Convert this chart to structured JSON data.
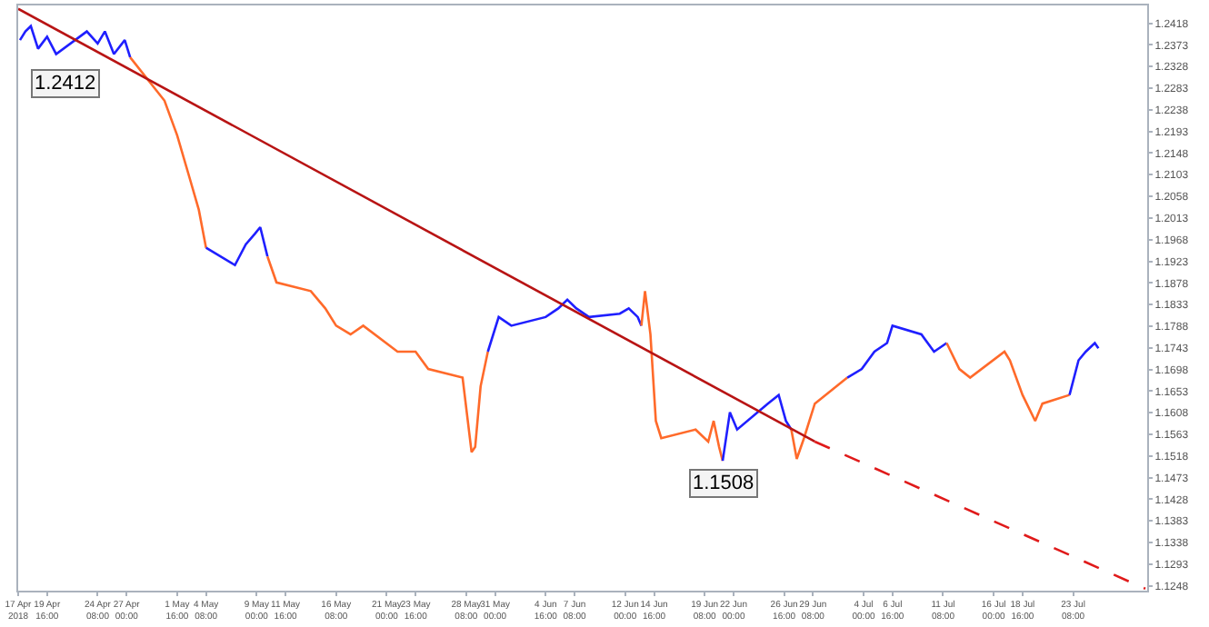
{
  "chart_data": {
    "type": "line",
    "xlim": [
      "2018-04-17T00:00",
      "2018-07-30T04:00"
    ],
    "ylim": [
      1.1238,
      1.2455
    ],
    "xticks": [
      {
        "value": "2018-04-17T00:00",
        "label": "17 Apr 2018"
      },
      {
        "value": "2018-04-19T16:00",
        "label": "19 Apr 16:00"
      },
      {
        "value": "2018-04-24T08:00",
        "label": "24 Apr 08:00"
      },
      {
        "value": "2018-04-27T00:00",
        "label": "27 Apr 00:00"
      },
      {
        "value": "2018-05-01T16:00",
        "label": "1 May 16:00"
      },
      {
        "value": "2018-05-04T08:00",
        "label": "4 May 08:00"
      },
      {
        "value": "2018-05-09T00:00",
        "label": "9 May 00:00"
      },
      {
        "value": "2018-05-11T16:00",
        "label": "11 May 16:00"
      },
      {
        "value": "2018-05-16T08:00",
        "label": "16 May 08:00"
      },
      {
        "value": "2018-05-21T00:00",
        "label": "21 May 00:00"
      },
      {
        "value": "2018-05-23T16:00",
        "label": "23 May 16:00"
      },
      {
        "value": "2018-05-28T08:00",
        "label": "28 May 08:00"
      },
      {
        "value": "2018-05-31T00:00",
        "label": "31 May 00:00"
      },
      {
        "value": "2018-06-04T16:00",
        "label": "4 Jun 16:00"
      },
      {
        "value": "2018-06-07T08:00",
        "label": "7 Jun 08:00"
      },
      {
        "value": "2018-06-12T00:00",
        "label": "12 Jun 00:00"
      },
      {
        "value": "2018-06-14T16:00",
        "label": "14 Jun 16:00"
      },
      {
        "value": "2018-06-19T08:00",
        "label": "19 Jun 08:00"
      },
      {
        "value": "2018-06-22T00:00",
        "label": "22 Jun 00:00"
      },
      {
        "value": "2018-06-26T16:00",
        "label": "26 Jun 16:00"
      },
      {
        "value": "2018-06-29T08:00",
        "label": "29 Jun 08:00"
      },
      {
        "value": "2018-07-04T00:00",
        "label": "4 Jul 00:00"
      },
      {
        "value": "2018-07-06T16:00",
        "label": "6 Jul 16:00"
      },
      {
        "value": "2018-07-11T08:00",
        "label": "11 Jul 08:00"
      },
      {
        "value": "2018-07-16T00:00",
        "label": "16 Jul 00:00"
      },
      {
        "value": "2018-07-18T16:00",
        "label": "18 Jul 16:00"
      },
      {
        "value": "2018-07-23T08:00",
        "label": "23 Jul 08:00"
      }
    ],
    "yticks": [
      1.1248,
      1.1293,
      1.1338,
      1.1383,
      1.1428,
      1.1473,
      1.1518,
      1.1563,
      1.1608,
      1.1653,
      1.1698,
      1.1743,
      1.1788,
      1.1833,
      1.1878,
      1.1923,
      1.1968,
      1.2013,
      1.2058,
      1.2103,
      1.2148,
      1.2193,
      1.2238,
      1.2283,
      1.2328,
      1.2373,
      1.2418
    ],
    "series": [
      {
        "color": "#1f1fff",
        "x": [
          "2018-04-17T04:00",
          "2018-04-17T16:00",
          "2018-04-18T04:00",
          "2018-04-18T20:00",
          "2018-04-19T16:00",
          "2018-04-20T12:00",
          "2018-04-23T08:00",
          "2018-04-24T08:00",
          "2018-04-25T00:00",
          "2018-04-25T20:00",
          "2018-04-26T20:00",
          "2018-04-27T08:00"
        ],
        "values": [
          1.2383,
          1.2401,
          1.2412,
          1.2365,
          1.239,
          1.2354,
          1.2401,
          1.2376,
          1.2401,
          1.2354,
          1.2383,
          1.2347
        ]
      },
      {
        "color": "#ff6a2a",
        "x": [
          "2018-04-27T08:00",
          "2018-04-30T12:00",
          "2018-05-01T16:00",
          "2018-05-02T20:00",
          "2018-05-03T16:00",
          "2018-05-04T08:00"
        ],
        "values": [
          1.2347,
          1.2257,
          1.2185,
          1.2095,
          1.203,
          1.1951
        ]
      },
      {
        "color": "#1f1fff",
        "x": [
          "2018-05-04T08:00",
          "2018-05-07T00:00",
          "2018-05-08T00:00",
          "2018-05-08T20:00",
          "2018-05-09T08:00",
          "2018-05-10T00:00"
        ],
        "values": [
          1.1951,
          1.1915,
          1.1958,
          1.198,
          1.1994,
          1.1933
        ]
      },
      {
        "color": "#ff6a2a",
        "x": [
          "2018-05-10T00:00",
          "2018-05-10T20:00",
          "2018-05-14T00:00",
          "2018-05-15T08:00",
          "2018-05-16T08:00",
          "2018-05-17T16:00",
          "2018-05-18T20:00",
          "2018-05-22T00:00",
          "2018-05-23T16:00",
          "2018-05-24T20:00",
          "2018-05-28T00:00",
          "2018-05-28T20:00",
          "2018-05-29T04:00",
          "2018-05-29T16:00",
          "2018-05-30T08:00"
        ],
        "values": [
          1.1933,
          1.1879,
          1.1861,
          1.1825,
          1.1789,
          1.1771,
          1.1789,
          1.1735,
          1.1735,
          1.1699,
          1.1681,
          1.1526,
          1.1537,
          1.1663,
          1.1735
        ]
      },
      {
        "color": "#1f1fff",
        "x": [
          "2018-05-30T08:00",
          "2018-05-31T08:00",
          "2018-06-01T12:00",
          "2018-06-04T16:00",
          "2018-06-05T20:00",
          "2018-06-06T16:00",
          "2018-06-07T12:00",
          "2018-06-08T16:00",
          "2018-06-11T12:00",
          "2018-06-12T08:00",
          "2018-06-13T04:00",
          "2018-06-13T12:00"
        ],
        "values": [
          1.1735,
          1.1807,
          1.1789,
          1.1807,
          1.1825,
          1.1843,
          1.1825,
          1.1807,
          1.1814,
          1.1825,
          1.1807,
          1.1789
        ]
      },
      {
        "color": "#ff6a2a",
        "x": [
          "2018-06-13T12:00",
          "2018-06-13T20:00",
          "2018-06-14T08:00",
          "2018-06-14T20:00",
          "2018-06-15T08:00",
          "2018-06-18T12:00",
          "2018-06-19T16:00",
          "2018-06-20T04:00",
          "2018-06-20T16:00",
          "2018-06-21T00:00"
        ],
        "values": [
          1.1789,
          1.1861,
          1.1771,
          1.1591,
          1.1555,
          1.1573,
          1.1548,
          1.1591,
          1.1537,
          1.1508
        ]
      },
      {
        "color": "#1f1fff",
        "x": [
          "2018-06-21T00:00",
          "2018-06-21T16:00",
          "2018-06-22T08:00",
          "2018-06-25T04:00",
          "2018-06-26T04:00",
          "2018-06-26T20:00",
          "2018-06-27T08:00"
        ],
        "values": [
          1.1508,
          1.1609,
          1.1573,
          1.1627,
          1.1645,
          1.1591,
          1.1573
        ]
      },
      {
        "color": "#ff6a2a",
        "x": [
          "2018-06-27T08:00",
          "2018-06-27T20:00",
          "2018-06-28T12:00",
          "2018-06-29T00:00",
          "2018-06-29T12:00",
          "2018-07-02T12:00"
        ],
        "values": [
          1.1573,
          1.1512,
          1.1555,
          1.1591,
          1.1627,
          1.1681
        ]
      },
      {
        "color": "#1f1fff",
        "x": [
          "2018-07-02T12:00",
          "2018-07-03T20:00",
          "2018-07-05T00:00",
          "2018-07-06T04:00",
          "2018-07-06T16:00",
          "2018-07-09T08:00",
          "2018-07-10T12:00",
          "2018-07-11T16:00"
        ],
        "values": [
          1.1681,
          1.1699,
          1.1735,
          1.1753,
          1.1789,
          1.1771,
          1.1735,
          1.1753
        ]
      },
      {
        "color": "#ff6a2a",
        "x": [
          "2018-07-11T16:00",
          "2018-07-12T20:00",
          "2018-07-13T20:00",
          "2018-07-17T00:00",
          "2018-07-17T12:00",
          "2018-07-18T16:00",
          "2018-07-19T20:00",
          "2018-07-20T12:00",
          "2018-07-23T00:00"
        ],
        "values": [
          1.1753,
          1.1699,
          1.1681,
          1.1735,
          1.1717,
          1.1645,
          1.1591,
          1.1627,
          1.1645
        ]
      },
      {
        "color": "#1f1fff",
        "x": [
          "2018-07-23T00:00",
          "2018-07-23T20:00",
          "2018-07-24T12:00",
          "2018-07-25T08:00",
          "2018-07-25T16:00"
        ],
        "values": [
          1.1645,
          1.1717,
          1.1735,
          1.1753,
          1.1742
        ]
      },
      {
        "color": "#b81414",
        "x": [
          "2018-04-17T00:00",
          "2018-06-29T12:00"
        ],
        "values": [
          1.2448,
          1.1548
        ]
      },
      {
        "color": "#e01a1a",
        "line_style": "dashed",
        "x": [
          "2018-06-29T12:00",
          "2018-07-30T00:00"
        ],
        "values": [
          1.1548,
          1.1242
        ]
      }
    ],
    "annotations": [
      {
        "text": "1.2412",
        "x": "2018-04-18T04:00",
        "y": 1.2412
      },
      {
        "text": "1.1508",
        "x": "2018-06-21T00:00",
        "y": 1.1508
      }
    ]
  }
}
